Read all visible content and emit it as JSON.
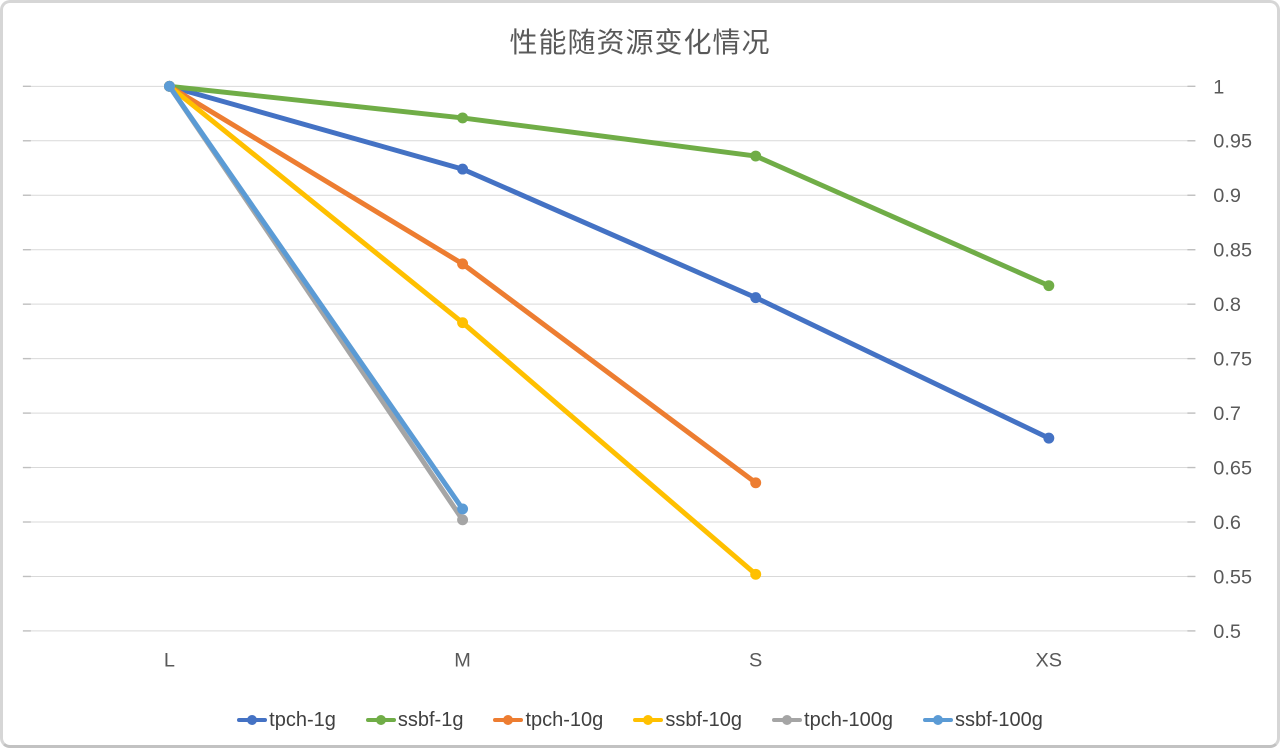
{
  "window": {
    "background": "#FFFFFF",
    "border_color": "#D6D6D6"
  },
  "chart_data": {
    "type": "line",
    "title": "性能随资源变化情况",
    "title_color": "#595959",
    "categories": [
      "L",
      "M",
      "S",
      "XS"
    ],
    "series": [
      {
        "name": "tpch-1g",
        "color": "#4472C4",
        "values": [
          1,
          0.924,
          0.806,
          0.677
        ]
      },
      {
        "name": "ssbf-1g",
        "color": "#70AD47",
        "values": [
          1,
          0.971,
          0.936,
          0.817
        ]
      },
      {
        "name": "tpch-10g",
        "color": "#ED7D31",
        "values": [
          1,
          0.837,
          0.636,
          null
        ]
      },
      {
        "name": "ssbf-10g",
        "color": "#FFC000",
        "values": [
          1,
          0.783,
          0.552,
          null
        ]
      },
      {
        "name": "tpch-100g",
        "color": "#A5A5A5",
        "values": [
          1,
          0.602,
          null,
          null
        ]
      },
      {
        "name": "ssbf-100g",
        "color": "#5B9BD5",
        "values": [
          1,
          0.612,
          null,
          null
        ]
      }
    ],
    "x_axis": {
      "tick_labels": [
        "L",
        "M",
        "S",
        "XS"
      ]
    },
    "y_axis": {
      "min": 0.5,
      "max": 1.0,
      "step": 0.05,
      "side": "right",
      "tick_labels": [
        "1",
        "0.95",
        "0.9",
        "0.85",
        "0.8",
        "0.75",
        "0.7",
        "0.65",
        "0.6",
        "0.55",
        "0.5"
      ]
    },
    "grid": true,
    "gridline_color": "#D9D9D9",
    "tick_color": "#BFBFBF",
    "axis_text_color": "#595959",
    "legend_position": "bottom",
    "marker_shape": "circle"
  }
}
